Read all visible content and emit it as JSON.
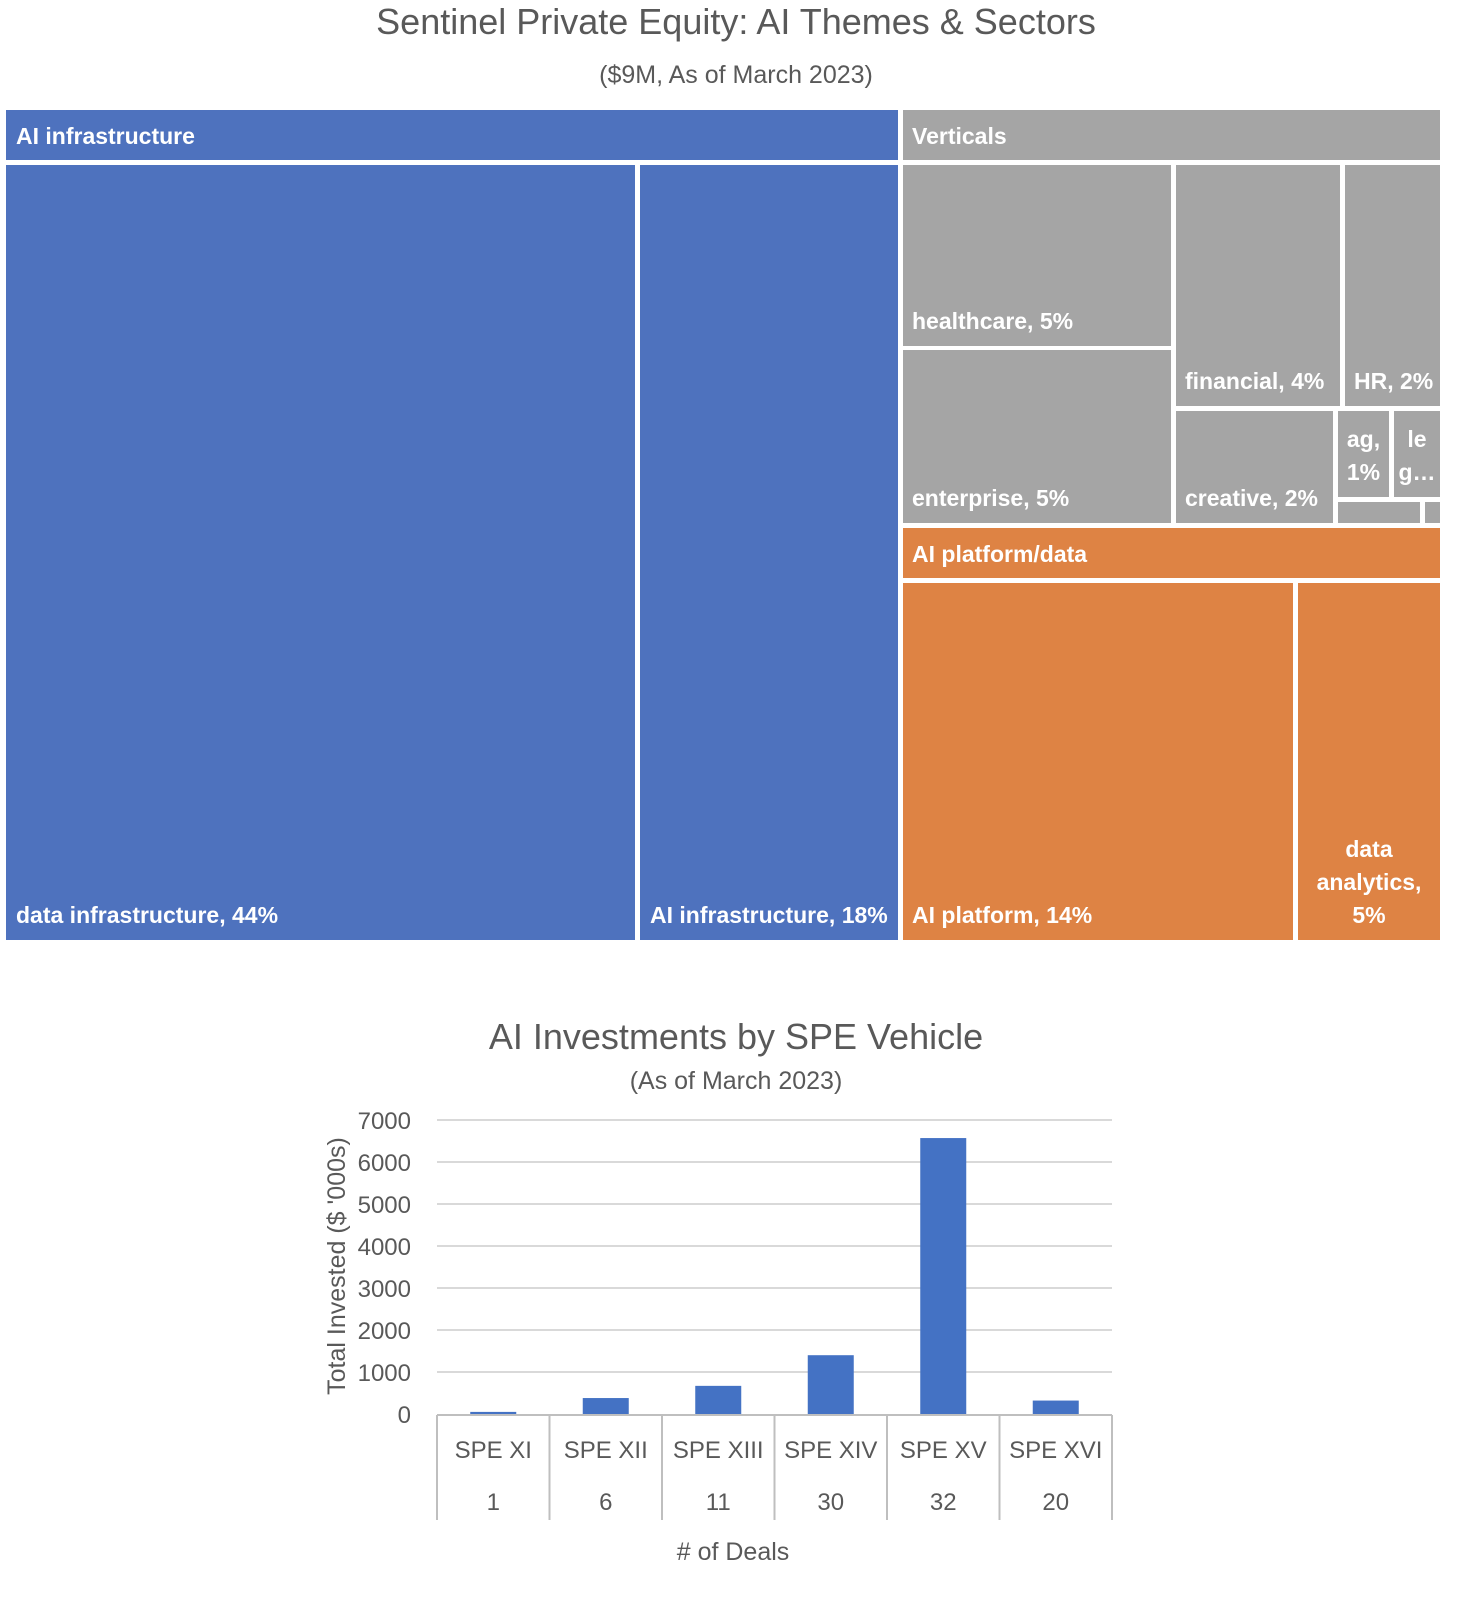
{
  "chart_data": [
    {
      "type": "treemap",
      "title": "Sentinel Private Equity: AI Themes & Sectors",
      "subtitle": "($9M, As of March 2023)",
      "colors": {
        "ai_infrastructure": "#4e72be",
        "verticals": "#a5a5a5",
        "ai_platform_data": "#de8344"
      },
      "groups": [
        {
          "name": "AI infrastructure",
          "color": "#4e72be",
          "items": [
            {
              "label": "data infrastructure, 44%",
              "name": "data infrastructure",
              "percent": 44
            },
            {
              "label": "AI infrastructure, 18%",
              "name": "AI infrastructure",
              "percent": 18
            }
          ]
        },
        {
          "name": "Verticals",
          "color": "#a5a5a5",
          "items": [
            {
              "label": "healthcare, 5%",
              "name": "healthcare",
              "percent": 5
            },
            {
              "label": "enterprise, 5%",
              "name": "enterprise",
              "percent": 5
            },
            {
              "label": "financial, 4%",
              "name": "financial",
              "percent": 4
            },
            {
              "label": "HR, 2%",
              "name": "HR",
              "percent": 2
            },
            {
              "label": "creative, 2%",
              "name": "creative",
              "percent": 2
            },
            {
              "label": "ag, 1%",
              "name": "ag",
              "percent": 1
            },
            {
              "label": "le g…",
              "name": "le g…",
              "percent": null
            },
            {
              "label": "",
              "name": "",
              "percent": null
            },
            {
              "label": "",
              "name": "",
              "percent": null
            }
          ]
        },
        {
          "name": "AI platform/data",
          "color": "#de8344",
          "items": [
            {
              "label": "AI platform, 14%",
              "name": "AI platform",
              "percent": 14
            },
            {
              "label": "data analytics, 5%",
              "name": "data analytics",
              "percent": 5
            }
          ]
        }
      ]
    },
    {
      "type": "bar",
      "title": "AI Investments by SPE Vehicle",
      "subtitle": "(As of March 2023)",
      "ylabel": "Total Invested ($ '000s)",
      "xlabel": "# of Deals",
      "ylim": [
        0,
        7000
      ],
      "yticks": [
        0,
        1000,
        2000,
        3000,
        4000,
        5000,
        6000,
        7000
      ],
      "grid": true,
      "bar_color": "#4472c4",
      "categories": [
        "SPE XI",
        "SPE XII",
        "SPE XIII",
        "SPE XIV",
        "SPE XV",
        "SPE XVI"
      ],
      "deals": [
        "1",
        "6",
        "11",
        "30",
        "32",
        "20"
      ],
      "values": [
        50,
        380,
        670,
        1400,
        6570,
        320
      ]
    }
  ]
}
